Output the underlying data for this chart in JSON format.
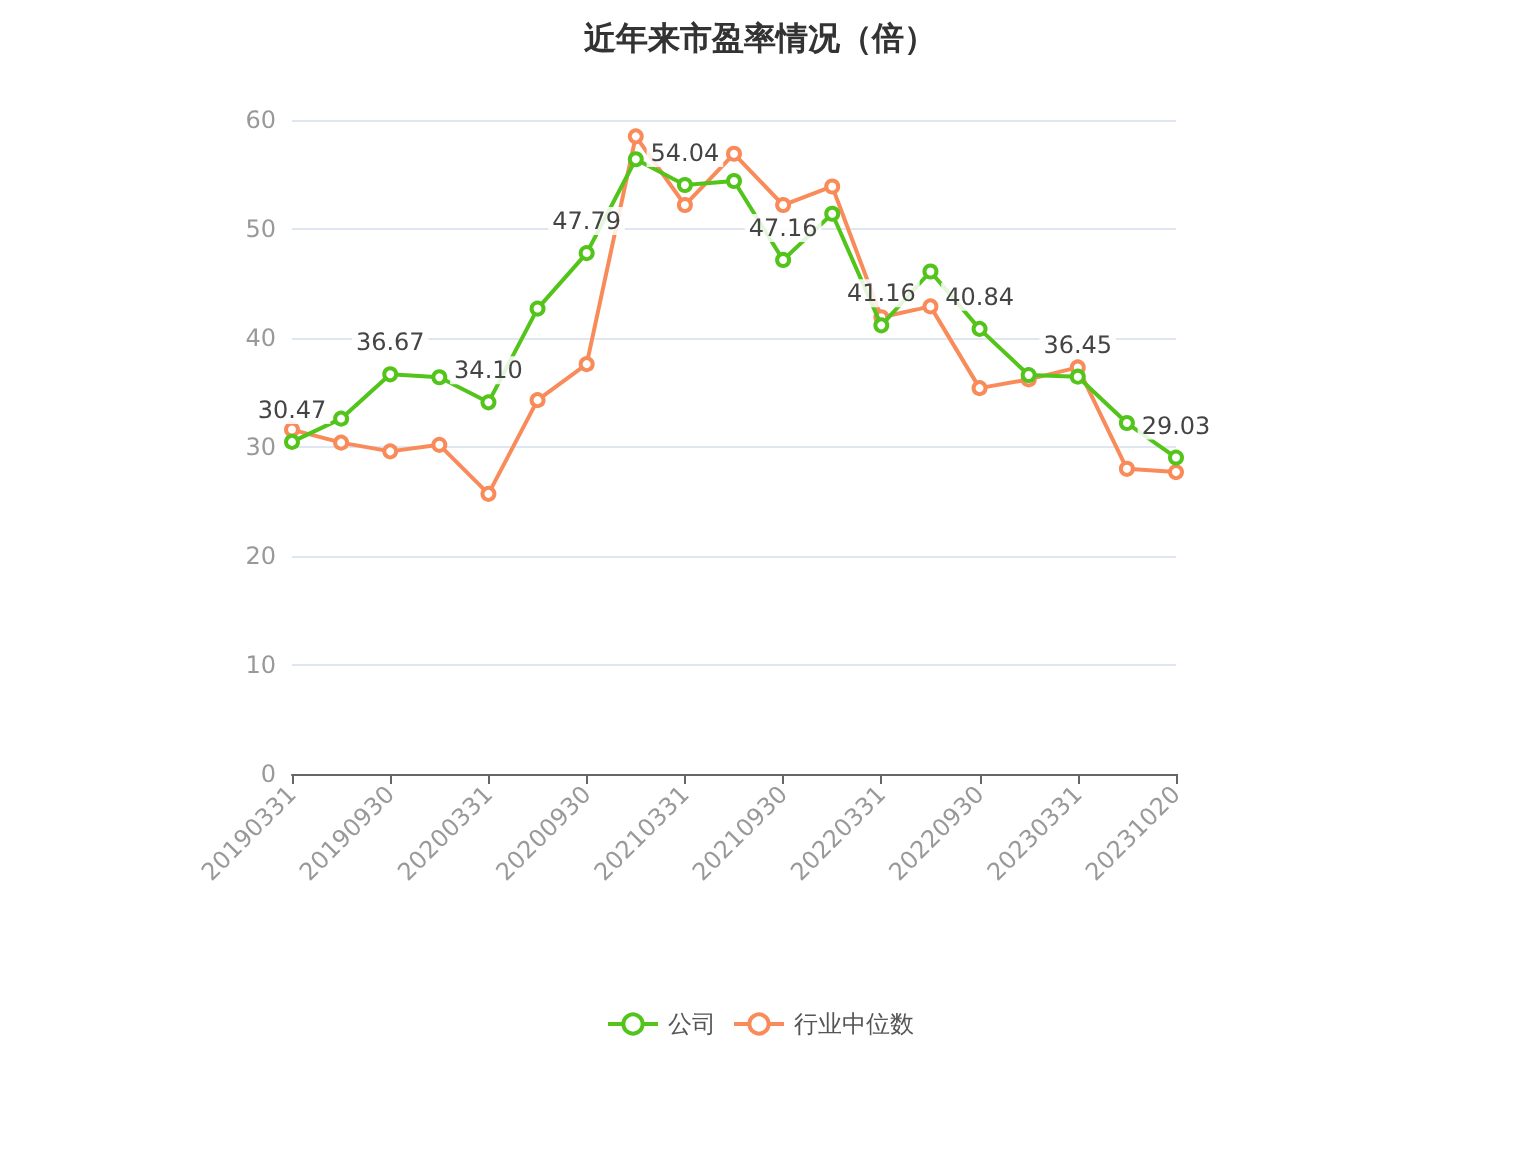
{
  "chart_data": {
    "type": "line",
    "title": "近年来市盈率情况（倍）",
    "categories": [
      "20190331",
      null,
      "20190930",
      null,
      "20200331",
      null,
      "20200930",
      null,
      "20210331",
      null,
      "20210930",
      null,
      "20220331",
      null,
      "20220930",
      null,
      "20230331",
      null,
      "20231020"
    ],
    "series": [
      {
        "name": "公司",
        "color": "#52c41a",
        "values": [
          30.47,
          32.6,
          36.67,
          36.4,
          34.1,
          42.7,
          47.79,
          56.4,
          54.04,
          54.4,
          47.16,
          51.4,
          41.16,
          46.1,
          40.84,
          36.6,
          36.45,
          32.2,
          29.03
        ],
        "value_labels": [
          "30.47",
          null,
          "36.67",
          null,
          "34.10",
          null,
          "47.79",
          null,
          "54.04",
          null,
          "47.16",
          null,
          "41.16",
          null,
          "40.84",
          null,
          "36.45",
          null,
          "29.03"
        ]
      },
      {
        "name": "行业中位数",
        "color": "#f98b5a",
        "values": [
          31.6,
          30.4,
          29.6,
          30.2,
          25.7,
          34.3,
          37.6,
          58.5,
          52.2,
          56.9,
          52.2,
          53.9,
          41.9,
          42.9,
          35.4,
          36.2,
          37.3,
          28.0,
          27.7
        ]
      }
    ],
    "ylim": [
      0,
      60
    ],
    "yticks": [
      0,
      10,
      20,
      30,
      40,
      50,
      60
    ],
    "grid": "y",
    "legend": "bottom",
    "marker": "circle",
    "line_style": "solid"
  }
}
